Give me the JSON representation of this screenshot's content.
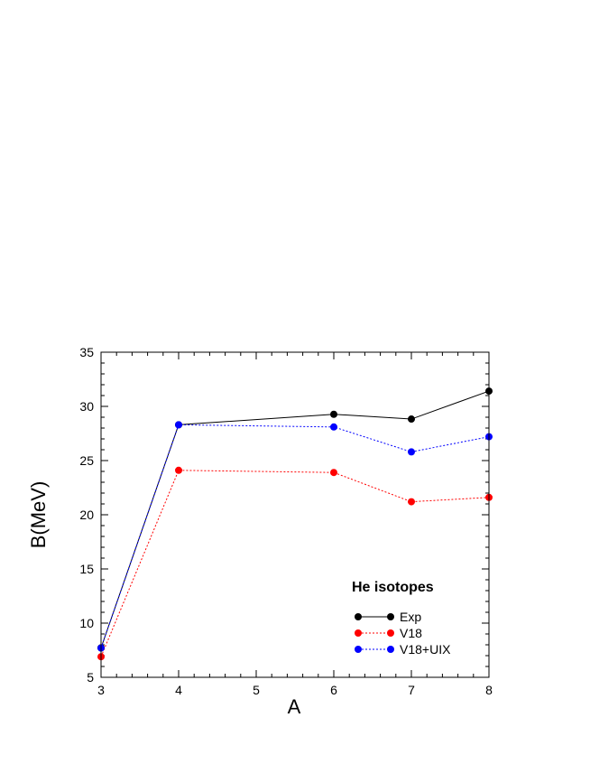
{
  "chart_data": {
    "type": "line",
    "title": "",
    "xlabel": "A",
    "ylabel": "B(MeV)",
    "xlim": [
      3,
      8
    ],
    "ylim": [
      5,
      35
    ],
    "x_ticks": [
      3,
      4,
      5,
      6,
      7,
      8
    ],
    "y_ticks": [
      5,
      10,
      15,
      20,
      25,
      30,
      35
    ],
    "grid": false,
    "legend": {
      "title": "He isotopes",
      "placement": "lower-right",
      "entries": [
        "Exp",
        "V18",
        "V18+UIX"
      ]
    },
    "series": [
      {
        "name": "Exp",
        "color": "#000000",
        "style": "solid",
        "x": [
          3,
          4,
          6,
          7,
          8
        ],
        "y": [
          7.72,
          28.3,
          29.27,
          28.83,
          31.41
        ]
      },
      {
        "name": "V18",
        "color": "#ff0000",
        "style": "dotted",
        "x": [
          3,
          4,
          6,
          7,
          8
        ],
        "y": [
          6.9,
          24.1,
          23.9,
          21.2,
          21.6
        ]
      },
      {
        "name": "V18+UIX",
        "color": "#0000ff",
        "style": "dotted",
        "x": [
          3,
          4,
          6,
          7,
          8
        ],
        "y": [
          7.7,
          28.3,
          28.1,
          25.8,
          27.2
        ]
      }
    ]
  }
}
